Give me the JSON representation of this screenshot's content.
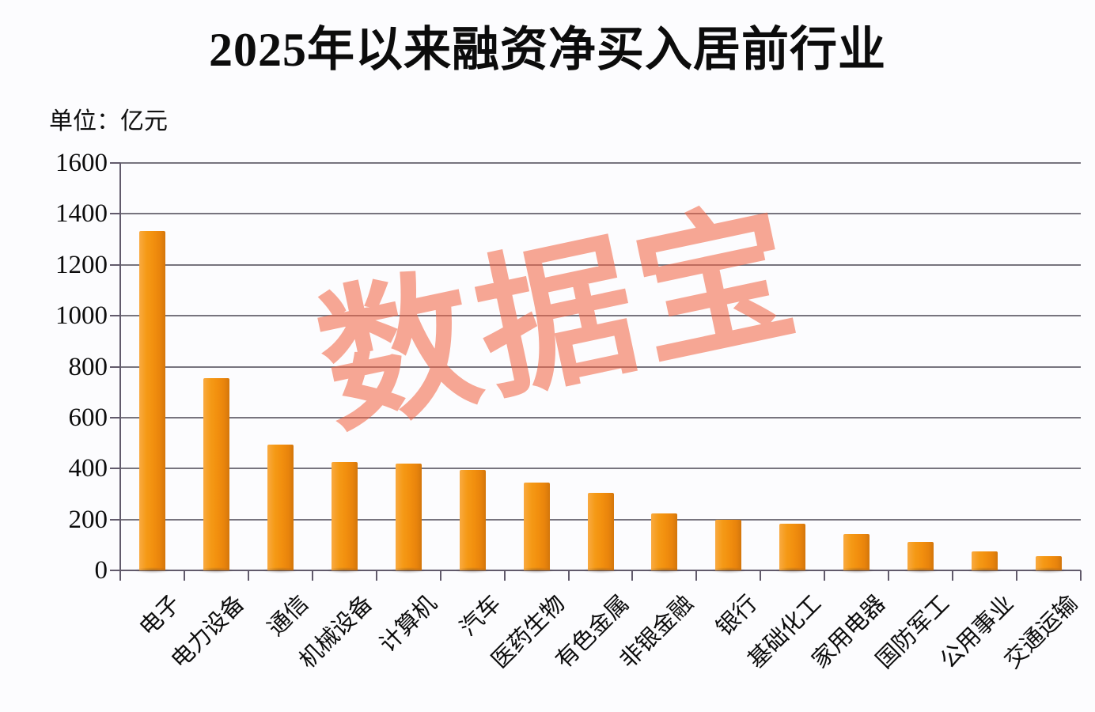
{
  "header": {
    "title": "2025年以来融资净买入居前行业",
    "unit_label": "单位：亿元"
  },
  "watermark": {
    "text": "数据宝",
    "color": "rgba(241,103,71,0.58)"
  },
  "colors": {
    "background": "#fcfcfe",
    "bar_light": "#f9aa41",
    "bar_main": "#f28f0e",
    "bar_dark": "#d3760b",
    "gridline": "#686570",
    "axis": "#615a6b",
    "text": "#0c0c0c"
  },
  "chart_data": {
    "type": "bar",
    "title": "2025年以来融资净买入居前行业",
    "ylabel": "单位：亿元",
    "xlabel": "",
    "categories": [
      "电子",
      "电力设备",
      "通信",
      "机械设备",
      "计算机",
      "汽车",
      "医药生物",
      "有色金属",
      "非银金融",
      "银行",
      "基础化工",
      "家用电器",
      "国防军工",
      "公用事业",
      "交通运输"
    ],
    "values": [
      1332,
      755,
      493,
      426,
      418,
      396,
      346,
      303,
      224,
      198,
      182,
      144,
      113,
      76,
      56
    ],
    "ylim": [
      0,
      1600
    ],
    "yticks": [
      0,
      200,
      400,
      600,
      800,
      1000,
      1200,
      1400,
      1600
    ],
    "grid": true,
    "legend_position": "none"
  }
}
